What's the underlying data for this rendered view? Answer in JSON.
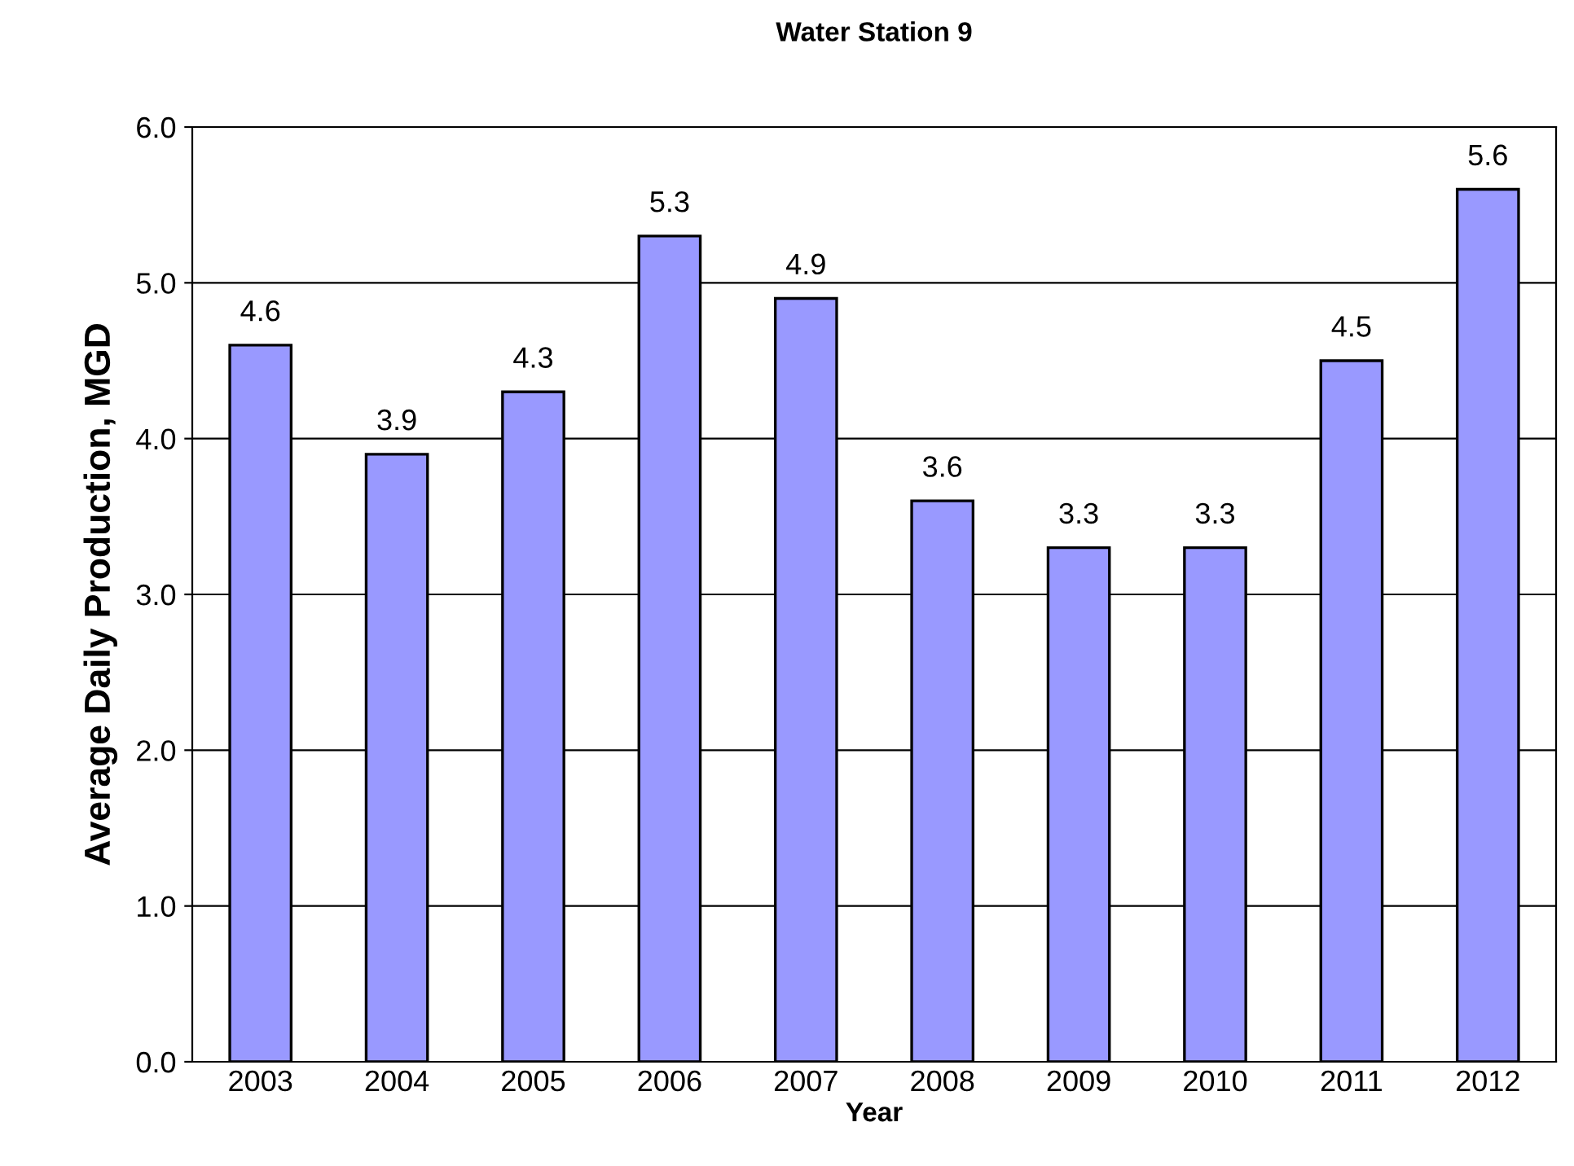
{
  "chart_data": {
    "type": "bar",
    "title": "Water Station 9",
    "xlabel": "Year",
    "ylabel": "Average Daily Production, MGD",
    "categories": [
      "2003",
      "2004",
      "2005",
      "2006",
      "2007",
      "2008",
      "2009",
      "2010",
      "2011",
      "2012"
    ],
    "values": [
      4.6,
      3.9,
      4.3,
      5.3,
      4.9,
      3.6,
      3.3,
      3.3,
      4.5,
      5.6
    ],
    "color": "#9999ff",
    "data_labels": true,
    "grid": "y",
    "legend": false,
    "ylim": [
      0,
      6
    ],
    "yticks": [
      {
        "value": 0,
        "label": "0.0"
      },
      {
        "value": 1,
        "label": "1.0"
      },
      {
        "value": 2,
        "label": "2.0"
      },
      {
        "value": 3,
        "label": "3.0"
      },
      {
        "value": 4,
        "label": "4.0"
      },
      {
        "value": 5,
        "label": "5.0"
      },
      {
        "value": 6,
        "label": "6.0"
      }
    ]
  }
}
